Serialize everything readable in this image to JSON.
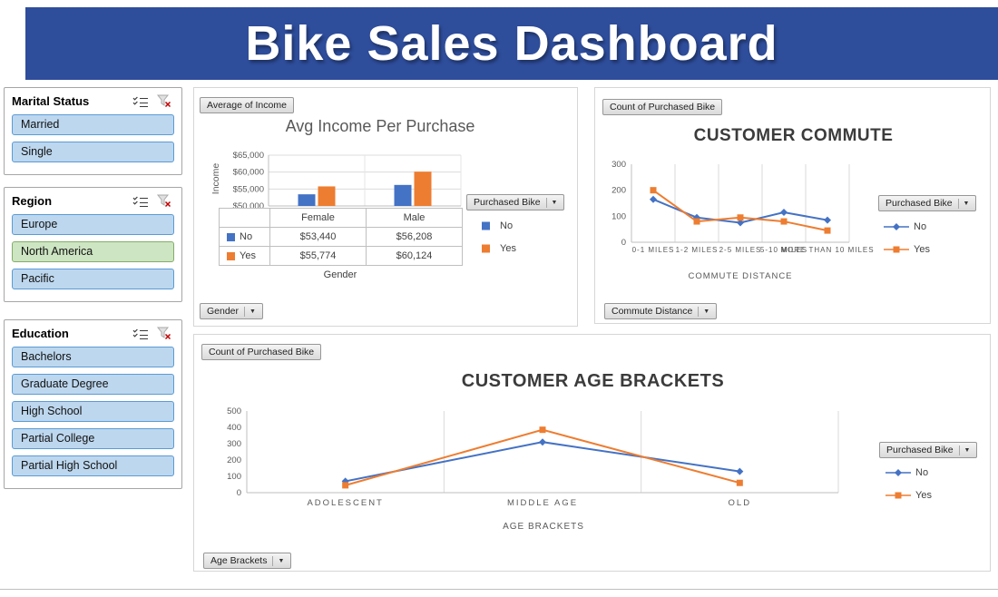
{
  "header": {
    "title": "Bike Sales Dashboard"
  },
  "colors": {
    "header_bg": "#2e4d9b",
    "series_no": "#4472c4",
    "series_yes": "#ed7d31",
    "slicer_item_bg": "#bdd7ee",
    "slicer_item_highlight_bg": "#cde5c2"
  },
  "slicers": [
    {
      "title": "Marital Status",
      "items": [
        {
          "label": "Married"
        },
        {
          "label": "Single"
        }
      ]
    },
    {
      "title": "Region",
      "items": [
        {
          "label": "Europe"
        },
        {
          "label": "North America",
          "highlighted": true
        },
        {
          "label": "Pacific"
        }
      ]
    },
    {
      "title": "Education",
      "items": [
        {
          "label": "Bachelors"
        },
        {
          "label": "Graduate Degree"
        },
        {
          "label": "High School"
        },
        {
          "label": "Partial College"
        },
        {
          "label": "Partial High School"
        }
      ]
    }
  ],
  "income_panel": {
    "field_button": "Average of Income",
    "legend_button": "Purchased Bike",
    "axis_button": "Gender"
  },
  "commute_panel": {
    "field_button": "Count of Purchased Bike",
    "legend_button": "Purchased Bike",
    "axis_button": "Commute Distance"
  },
  "age_panel": {
    "field_button": "Count of Purchased Bike",
    "legend_button": "Purchased Bike",
    "axis_button": "Age Brackets"
  },
  "chart_data": [
    {
      "id": "income",
      "type": "bar",
      "title": "Avg Income Per Purchase",
      "xlabel": "Gender",
      "ylabel": "Income",
      "categories": [
        "Female",
        "Male"
      ],
      "series": [
        {
          "name": "No",
          "values": [
            53440,
            56208
          ],
          "color": "#4472c4"
        },
        {
          "name": "Yes",
          "values": [
            55774,
            60124
          ],
          "color": "#ed7d31"
        }
      ],
      "table": {
        "rows": [
          [
            "$53,440",
            "$56,208"
          ],
          [
            "$55,774",
            "$60,124"
          ]
        ]
      },
      "ylim": [
        50000,
        65000
      ],
      "ytick_labels": [
        "$50,000",
        "$55,000",
        "$60,000",
        "$65,000"
      ],
      "grid": true,
      "legend_position": "right"
    },
    {
      "id": "commute",
      "type": "line",
      "title": "CUSTOMER COMMUTE",
      "xlabel": "COMMUTE DISTANCE",
      "categories": [
        "0-1 MILES",
        "1-2 MILES",
        "2-5 MILES",
        "5-10 MILES",
        "MORE THAN 10 MILES"
      ],
      "series": [
        {
          "name": "No",
          "values": [
            165,
            95,
            75,
            115,
            85
          ],
          "color": "#4472c4",
          "marker": "diamond"
        },
        {
          "name": "Yes",
          "values": [
            200,
            80,
            95,
            80,
            45
          ],
          "color": "#ed7d31",
          "marker": "square"
        }
      ],
      "ylim": [
        0,
        300
      ],
      "yticks": [
        0,
        100,
        200,
        300
      ],
      "legend_position": "right"
    },
    {
      "id": "age",
      "type": "line",
      "title": "CUSTOMER AGE BRACKETS",
      "xlabel": "AGE BRACKETS",
      "categories": [
        "ADOLESCENT",
        "MIDDLE AGE",
        "OLD"
      ],
      "series": [
        {
          "name": "No",
          "values": [
            70,
            310,
            130
          ],
          "color": "#4472c4",
          "marker": "diamond"
        },
        {
          "name": "Yes",
          "values": [
            45,
            385,
            60
          ],
          "color": "#ed7d31",
          "marker": "square"
        }
      ],
      "ylim": [
        0,
        500
      ],
      "yticks": [
        0,
        100,
        200,
        300,
        400,
        500
      ],
      "legend_position": "right"
    }
  ]
}
